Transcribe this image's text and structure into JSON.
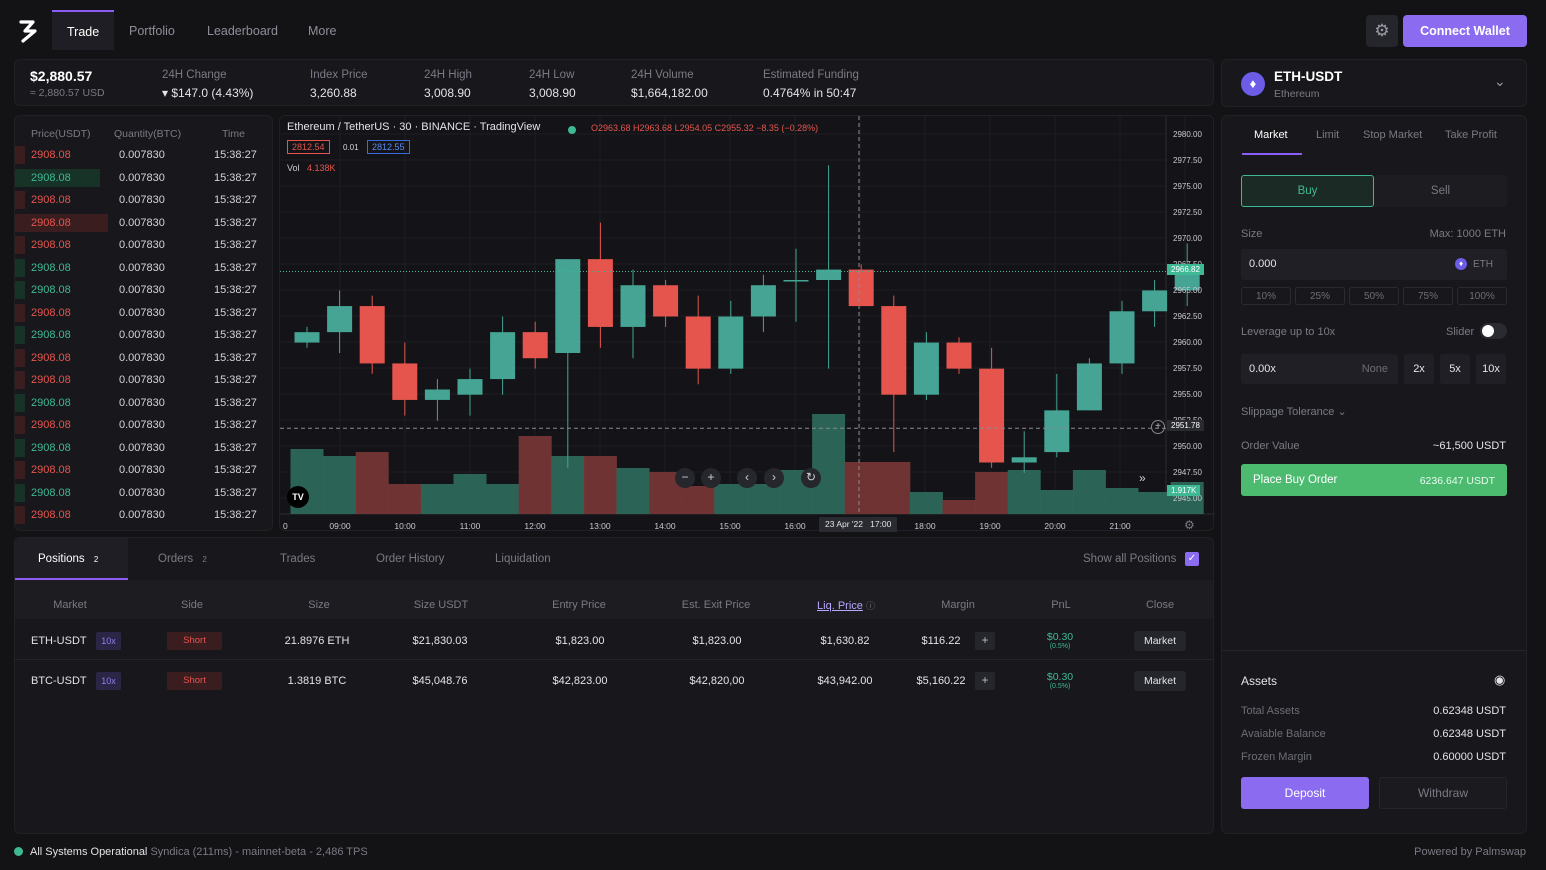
{
  "nav": {
    "tabs": [
      "Trade",
      "Portfolio",
      "Leaderboard",
      "More"
    ],
    "connect_label": "Connect Wallet"
  },
  "stats": {
    "price": "$2,880.57",
    "price_usd": "≈ 2,880.57 USD",
    "change_label": "24H Change",
    "change_value": "▾ $147.0 (4.43%)",
    "index_label": "Index Price",
    "index_value": "3,260.88",
    "high_label": "24H High",
    "high_value": "3,008.90",
    "low_label": "24H Low",
    "low_value": "3,008.90",
    "volume_label": "24H Volume",
    "volume_value": "$1,664,182.00",
    "funding_label": "Estimated Funding",
    "funding_value": "0.4764% in 50:47"
  },
  "orderbook": {
    "headers": [
      "Price(USDT)",
      "Quantity(BTC)",
      "Time"
    ],
    "rows": [
      {
        "price": "2908.08",
        "qty": "0.007830",
        "time": "15:38:27",
        "side": "sell",
        "depth": 0.04
      },
      {
        "price": "2908.08",
        "qty": "0.007830",
        "time": "15:38:27",
        "side": "buy",
        "depth": 0.33
      },
      {
        "price": "2908.08",
        "qty": "0.007830",
        "time": "15:38:27",
        "side": "sell",
        "depth": 0.04
      },
      {
        "price": "2908.08",
        "qty": "0.007830",
        "time": "15:38:27",
        "side": "sell",
        "depth": 0.36
      },
      {
        "price": "2908.08",
        "qty": "0.007830",
        "time": "15:38:27",
        "side": "sell",
        "depth": 0.04
      },
      {
        "price": "2908.08",
        "qty": "0.007830",
        "time": "15:38:27",
        "side": "buy",
        "depth": 0.04
      },
      {
        "price": "2908.08",
        "qty": "0.007830",
        "time": "15:38:27",
        "side": "buy",
        "depth": 0.04
      },
      {
        "price": "2908.08",
        "qty": "0.007830",
        "time": "15:38:27",
        "side": "sell",
        "depth": 0.04
      },
      {
        "price": "2908.08",
        "qty": "0.007830",
        "time": "15:38:27",
        "side": "buy",
        "depth": 0.04
      },
      {
        "price": "2908.08",
        "qty": "0.007830",
        "time": "15:38:27",
        "side": "sell",
        "depth": 0.04
      },
      {
        "price": "2908.08",
        "qty": "0.007830",
        "time": "15:38:27",
        "side": "sell",
        "depth": 0.04
      },
      {
        "price": "2908.08",
        "qty": "0.007830",
        "time": "15:38:27",
        "side": "buy",
        "depth": 0.04
      },
      {
        "price": "2908.08",
        "qty": "0.007830",
        "time": "15:38:27",
        "side": "sell",
        "depth": 0.04
      },
      {
        "price": "2908.08",
        "qty": "0.007830",
        "time": "15:38:27",
        "side": "buy",
        "depth": 0.04
      },
      {
        "price": "2908.08",
        "qty": "0.007830",
        "time": "15:38:27",
        "side": "sell",
        "depth": 0.04
      },
      {
        "price": "2908.08",
        "qty": "0.007830",
        "time": "15:38:27",
        "side": "buy",
        "depth": 0.04
      },
      {
        "price": "2908.08",
        "qty": "0.007830",
        "time": "15:38:27",
        "side": "sell",
        "depth": 0.04
      }
    ]
  },
  "chart": {
    "symbol": "Ethereum / TetherUS · 30 · BINANCE · TradingView",
    "ohlc": "O2963.68 H2963.68 L2954.05 C2955.32 −8.35 (−0.28%)",
    "bid": "2812.54",
    "spread": "0.01",
    "ask": "2812.55",
    "vol_label": "Vol",
    "vol_value": "4.138K",
    "cursor_date": "23 Apr '22",
    "cursor_time": "17:00",
    "y_ticks": [
      "2980.00",
      "2977.50",
      "2975.00",
      "2972.50",
      "2970.00",
      "2967.50",
      "2965.00",
      "2962.50",
      "2960.00",
      "2957.50",
      "2955.00",
      "2952.50",
      "2950.00",
      "2947.50",
      "2945.00"
    ],
    "x_ticks": [
      "09:00",
      "10:00",
      "11:00",
      "12:00",
      "13:00",
      "14:00",
      "15:00",
      "16:00",
      "18:00",
      "19:00",
      "20:00",
      "21:00"
    ],
    "x_zero": "0",
    "last_price": "2966.82",
    "crosshair_price": "2951.78",
    "vol_tag": "1.917K"
  },
  "chart_data": {
    "type": "candlestick",
    "y_range": [
      2945.0,
      2980.0
    ],
    "candles": [
      {
        "o": 2960.0,
        "h": 2961.5,
        "l": 2959.5,
        "c": 2961.0
      },
      {
        "o": 2961.0,
        "h": 2965.0,
        "l": 2959.0,
        "c": 2963.5
      },
      {
        "o": 2963.5,
        "h": 2964.5,
        "l": 2957.0,
        "c": 2958.0
      },
      {
        "o": 2958.0,
        "h": 2960.0,
        "l": 2953.0,
        "c": 2954.5
      },
      {
        "o": 2954.5,
        "h": 2956.5,
        "l": 2952.5,
        "c": 2955.5
      },
      {
        "o": 2955.0,
        "h": 2957.5,
        "l": 2953.0,
        "c": 2956.5
      },
      {
        "o": 2956.5,
        "h": 2962.5,
        "l": 2955.0,
        "c": 2961.0
      },
      {
        "o": 2961.0,
        "h": 2962.0,
        "l": 2957.5,
        "c": 2958.5
      },
      {
        "o": 2959.0,
        "h": 2968.0,
        "l": 2948.0,
        "c": 2968.0
      },
      {
        "o": 2968.0,
        "h": 2971.5,
        "l": 2959.5,
        "c": 2961.5
      },
      {
        "o": 2961.5,
        "h": 2967.0,
        "l": 2958.5,
        "c": 2965.5
      },
      {
        "o": 2965.5,
        "h": 2966.0,
        "l": 2961.5,
        "c": 2962.5
      },
      {
        "o": 2962.5,
        "h": 2964.5,
        "l": 2956.0,
        "c": 2957.5
      },
      {
        "o": 2957.5,
        "h": 2964.0,
        "l": 2957.0,
        "c": 2962.5
      },
      {
        "o": 2962.5,
        "h": 2966.5,
        "l": 2961.0,
        "c": 2965.5
      },
      {
        "o": 2966.0,
        "h": 2969.0,
        "l": 2962.0,
        "c": 2966.0
      },
      {
        "o": 2966.0,
        "h": 2977.0,
        "l": 2957.5,
        "c": 2967.0
      },
      {
        "o": 2967.0,
        "h": 2967.5,
        "l": 2963.5,
        "c": 2963.5
      },
      {
        "o": 2963.5,
        "h": 2964.5,
        "l": 2949.5,
        "c": 2955.0
      },
      {
        "o": 2955.0,
        "h": 2961.0,
        "l": 2954.5,
        "c": 2960.0
      },
      {
        "o": 2960.0,
        "h": 2960.5,
        "l": 2957.0,
        "c": 2957.5
      },
      {
        "o": 2957.5,
        "h": 2959.5,
        "l": 2948.0,
        "c": 2948.5
      },
      {
        "o": 2948.5,
        "h": 2951.5,
        "l": 2947.5,
        "c": 2949.0
      },
      {
        "o": 2949.5,
        "h": 2957.0,
        "l": 2949.0,
        "c": 2953.5
      },
      {
        "o": 2953.5,
        "h": 2958.5,
        "l": 2953.5,
        "c": 2958.0
      },
      {
        "o": 2958.0,
        "h": 2964.0,
        "l": 2957.0,
        "c": 2963.0
      },
      {
        "o": 2963.0,
        "h": 2966.0,
        "l": 2961.5,
        "c": 2965.0
      },
      {
        "o": 2965.0,
        "h": 2969.5,
        "l": 2963.5,
        "c": 2966.8
      }
    ],
    "volumes": [
      0.65,
      0.58,
      0.62,
      0.3,
      0.3,
      0.4,
      0.3,
      0.78,
      0.58,
      0.58,
      0.46,
      0.42,
      0.28,
      0.3,
      0.3,
      0.44,
      1.0,
      0.52,
      0.52,
      0.22,
      0.14,
      0.42,
      0.44,
      0.24,
      0.44,
      0.26,
      0.22,
      0.32
    ]
  },
  "bottom": {
    "tabs": [
      "Positions",
      "Orders",
      "Trades",
      "Order History",
      "Liquidation"
    ],
    "positions_count": "2",
    "orders_count": "2",
    "show_all": "Show all Positions",
    "headers": [
      "Market",
      "Side",
      "Size",
      "Size USDT",
      "Entry Price",
      "Est. Exit Price",
      "Liq. Price",
      "Margin",
      "PnL",
      "Close"
    ],
    "rows": [
      {
        "market": "ETH-USDT",
        "lev": "10x",
        "side": "Short",
        "size": "21.8976 ETH",
        "size_usdt": "$21,830.03",
        "entry": "$1,823.00",
        "exit": "$1,823.00",
        "liq": "$1,630.82",
        "margin": "$116.22",
        "pnl": "$0.30",
        "pnl_pct": "(0.5%)",
        "close": "Market"
      },
      {
        "market": "BTC-USDT",
        "lev": "10x",
        "side": "Short",
        "size": "1.3819 BTC",
        "size_usdt": "$45,048.76",
        "entry": "$42,823.00",
        "exit": "$42,820,00",
        "liq": "$43,942.00",
        "margin": "$5,160.22",
        "pnl": "$0.30",
        "pnl_pct": "(0.5%)",
        "close": "Market"
      }
    ]
  },
  "market": {
    "pair": "ETH-USDT",
    "name": "Ethereum"
  },
  "order": {
    "tabs": [
      "Market",
      "Limit",
      "Stop Market",
      "Take Profit"
    ],
    "buy": "Buy",
    "sell": "Sell",
    "size_label": "Size",
    "max_label": "Max: 1000 ETH",
    "size_value": "0.000",
    "size_unit": "ETH",
    "percents": [
      "10%",
      "25%",
      "50%",
      "75%",
      "100%"
    ],
    "leverage_label": "Leverage up to 10x",
    "slider_label": "Slider",
    "leverage_value": "0.00x",
    "leverage_none": "None",
    "leverage_opts": [
      "2x",
      "5x",
      "10x"
    ],
    "slippage_label": "Slippage Tolerance",
    "order_value_label": "Order Value",
    "order_value": "~61,500 USDT",
    "place_label": "Place Buy Order",
    "place_value": "6236.647 USDT"
  },
  "assets": {
    "title": "Assets",
    "rows": [
      {
        "label": "Total Assets",
        "value": "0.62348 USDT"
      },
      {
        "label": "Avaiable Balance",
        "value": "0.62348 USDT"
      },
      {
        "label": "Frozen Margin",
        "value": "0.60000 USDT"
      }
    ],
    "deposit": "Deposit",
    "withdraw": "Withdraw"
  },
  "footer": {
    "status": "All Systems Operational",
    "detail": "Syndica (211ms) - mainnet-beta - 2,486 TPS",
    "powered": "Powered by Palmswap"
  },
  "colors": {
    "accent": "#8b6cf0",
    "up": "#3fb894",
    "down": "#e5554e",
    "bg": "#131316"
  }
}
